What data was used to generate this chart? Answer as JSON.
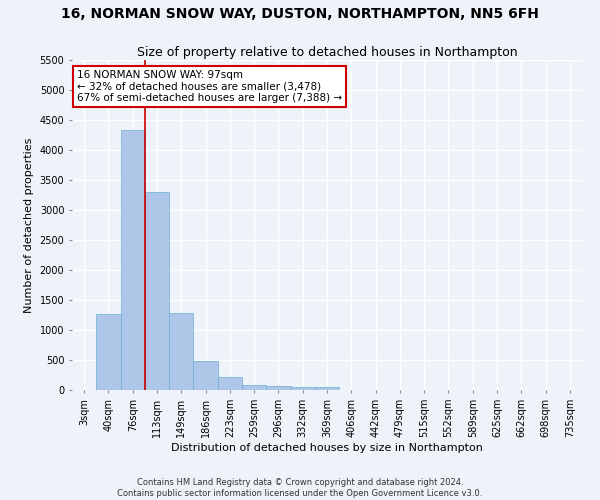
{
  "title_line1": "16, NORMAN SNOW WAY, DUSTON, NORTHAMPTON, NN5 6FH",
  "title_line2": "Size of property relative to detached houses in Northampton",
  "xlabel": "Distribution of detached houses by size in Northampton",
  "ylabel": "Number of detached properties",
  "footnote": "Contains HM Land Registry data © Crown copyright and database right 2024.\nContains public sector information licensed under the Open Government Licence v3.0.",
  "bar_labels": [
    "3sqm",
    "40sqm",
    "76sqm",
    "113sqm",
    "149sqm",
    "186sqm",
    "223sqm",
    "259sqm",
    "296sqm",
    "332sqm",
    "369sqm",
    "406sqm",
    "442sqm",
    "479sqm",
    "515sqm",
    "552sqm",
    "589sqm",
    "625sqm",
    "662sqm",
    "698sqm",
    "735sqm"
  ],
  "bar_values": [
    0,
    1270,
    4330,
    3300,
    1280,
    490,
    210,
    90,
    60,
    50,
    50,
    0,
    0,
    0,
    0,
    0,
    0,
    0,
    0,
    0,
    0
  ],
  "bar_color": "#aec6e8",
  "bar_edge_color": "#6aaed6",
  "annotation_box_text": "16 NORMAN SNOW WAY: 97sqm\n← 32% of detached houses are smaller (3,478)\n67% of semi-detached houses are larger (7,388) →",
  "vline_x": 2.5,
  "vline_color": "#cc0000",
  "ylim": [
    0,
    5500
  ],
  "yticks": [
    0,
    500,
    1000,
    1500,
    2000,
    2500,
    3000,
    3500,
    4000,
    4500,
    5000,
    5500
  ],
  "background_color": "#eef2f9",
  "grid_color": "#ffffff",
  "annotation_box_color": "#ffffff",
  "annotation_box_edge": "#cc0000",
  "title_fontsize": 10,
  "subtitle_fontsize": 9,
  "axis_label_fontsize": 8,
  "tick_fontsize": 7,
  "annotation_fontsize": 7.5,
  "footnote_fontsize": 6
}
